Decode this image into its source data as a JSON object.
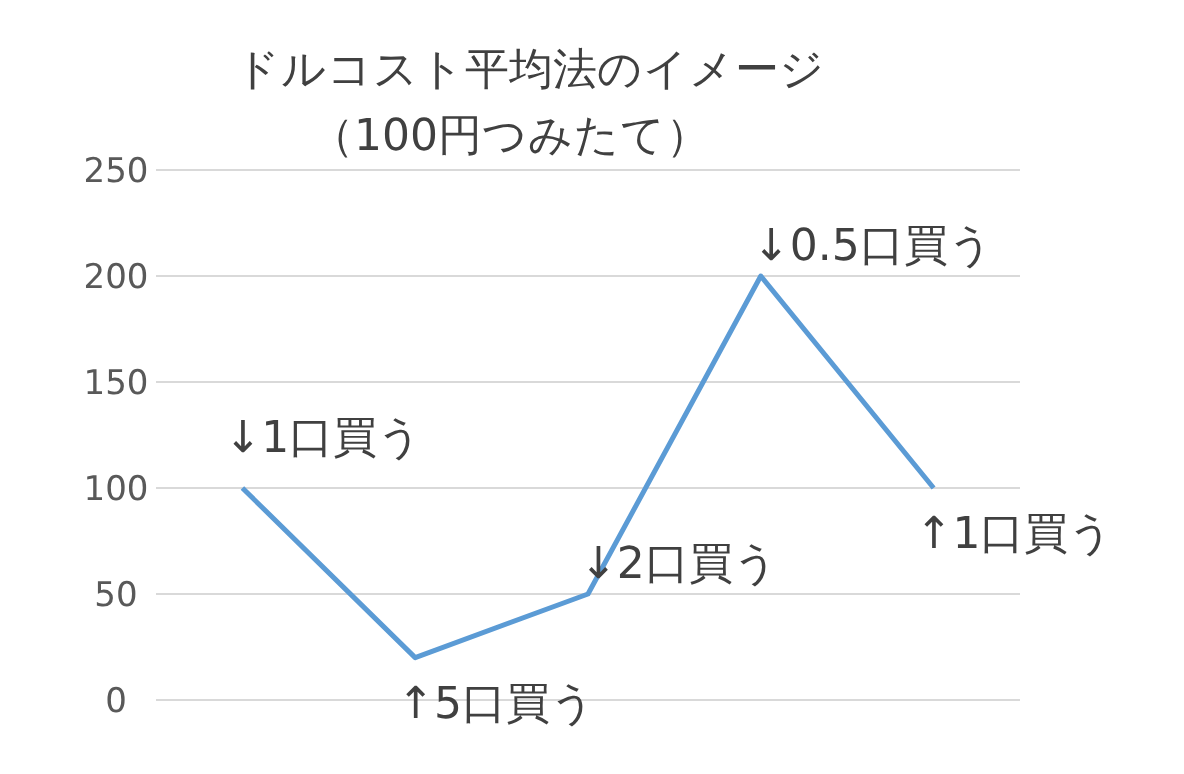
{
  "chart_data": {
    "type": "line",
    "title": "ドルコスト平均法のイメージ",
    "subtitle": "（100円つみたて）",
    "categories": [
      null,
      null,
      null,
      null,
      null
    ],
    "series": [
      {
        "color": "#5b9bd5",
        "values": [
          100,
          20,
          50,
          200,
          100
        ]
      }
    ],
    "ylim": [
      0,
      250
    ],
    "yticks": [
      0,
      50,
      100,
      150,
      200,
      250
    ],
    "grid": "y",
    "marker": "none",
    "annotations": [
      "↓1口買う",
      "↑5口買う",
      "↓2口買う",
      "↓0.5口買う",
      "↑1口買う"
    ]
  }
}
